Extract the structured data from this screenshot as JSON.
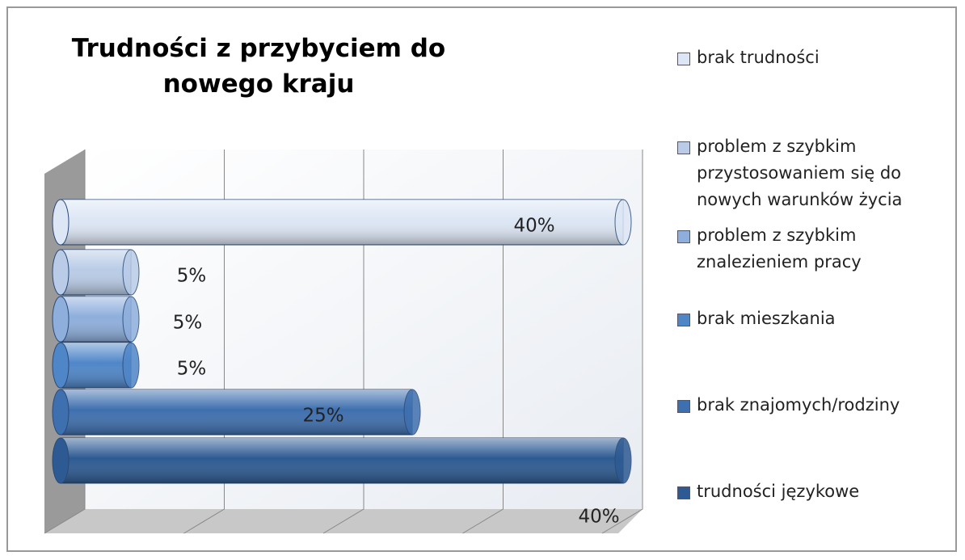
{
  "chart_data": {
    "type": "bar",
    "orientation": "horizontal",
    "title": "Trudności z przybyciem do nowego kraju",
    "categories": [
      "brak trudności",
      "problem z szybkim przystosowaniem się do nowych warunków życia",
      "problem z szybkim znalezieniem pracy",
      "brak mieszkania",
      "brak znajomych/rodziny",
      "trudności językowe"
    ],
    "values": [
      40,
      5,
      5,
      5,
      25,
      40
    ],
    "value_labels": [
      "40%",
      "5%",
      "5%",
      "5%",
      "25%",
      "40%"
    ],
    "colors": [
      "#dce6f4",
      "#b9cbe6",
      "#8eaedc",
      "#4f86c8",
      "#3e6fae",
      "#2d5a92"
    ],
    "xlim": [
      0,
      40
    ],
    "xticks": [
      0,
      10,
      20,
      30,
      40
    ],
    "grid": true
  }
}
